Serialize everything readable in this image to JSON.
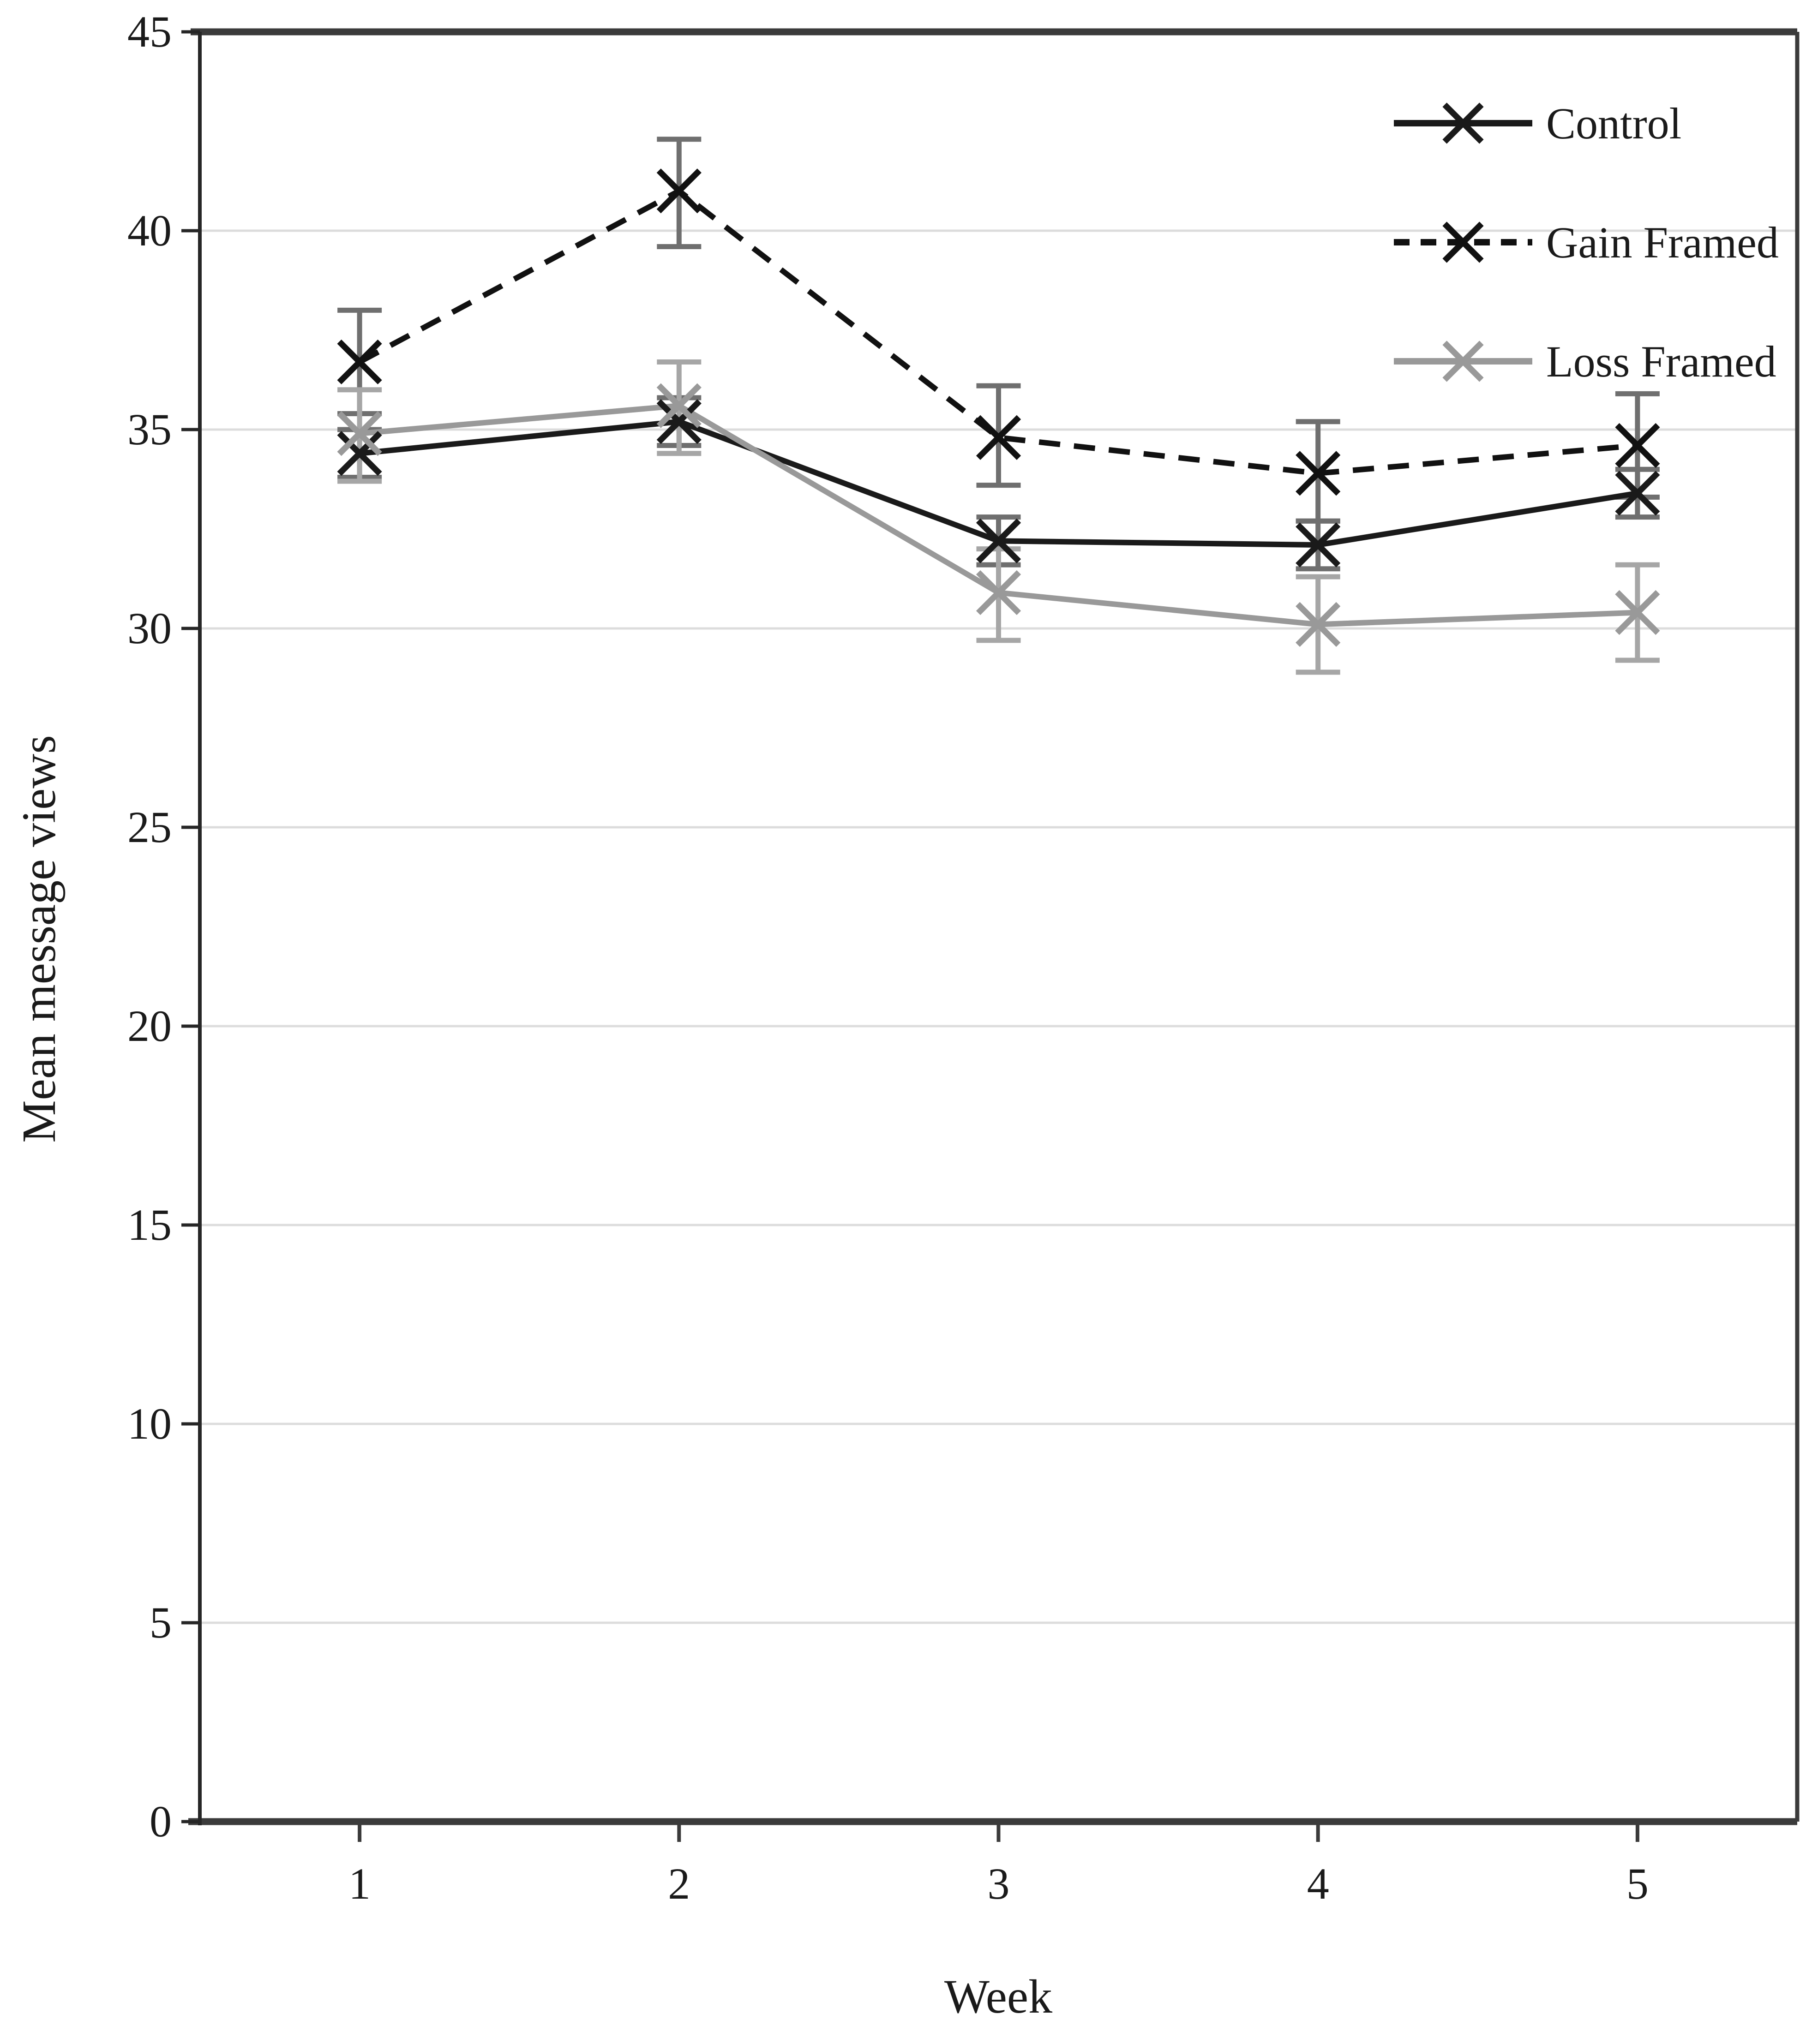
{
  "figure": {
    "background": "#ffffff",
    "text_color": "#1a1a1a",
    "x_axis_title": "Week",
    "y_axis_title": "Mean message views"
  },
  "chart_data": {
    "type": "line",
    "title": "",
    "xlabel": "Week",
    "ylabel": "Mean message views",
    "categories": [
      "1",
      "2",
      "3",
      "4",
      "5"
    ],
    "x": [
      1,
      2,
      3,
      4,
      5
    ],
    "ylim": [
      0,
      45
    ],
    "y_tick_step": 5,
    "y_tick_labels": [
      "0",
      "5",
      "10",
      "15",
      "20",
      "25",
      "30",
      "35",
      "40",
      "45"
    ],
    "grid": "horizontal-light",
    "grid_color": "#dcdcdc",
    "axis_color": "#3b3b3b",
    "legend_position": "top-right-inside",
    "error_bars": true,
    "series": [
      {
        "name": "Control",
        "line_style": "solid",
        "color": "#1a1a1a",
        "marker": "x",
        "error_color": "#6f6f6f",
        "values": [
          34.4,
          35.2,
          32.2,
          32.1,
          33.4
        ],
        "error_low": [
          33.8,
          34.6,
          31.6,
          31.5,
          32.8
        ],
        "error_high": [
          35.0,
          35.8,
          32.8,
          32.7,
          34.0
        ]
      },
      {
        "name": "Gain Framed",
        "line_style": "dashed",
        "color": "#111111",
        "marker": "x",
        "error_color": "#6f6f6f",
        "values": [
          36.7,
          41.0,
          34.8,
          33.9,
          34.6
        ],
        "error_low": [
          35.4,
          39.6,
          33.6,
          32.7,
          33.3
        ],
        "error_high": [
          38.0,
          42.3,
          36.1,
          35.2,
          35.9
        ]
      },
      {
        "name": "Loss Framed",
        "line_style": "solid",
        "color": "#999999",
        "marker": "x",
        "error_color": "#a6a6a6",
        "values": [
          34.9,
          35.6,
          30.9,
          30.1,
          30.4
        ],
        "error_low": [
          33.7,
          34.4,
          29.7,
          28.9,
          29.2
        ],
        "error_high": [
          36.0,
          36.7,
          32.0,
          31.3,
          31.6
        ]
      }
    ]
  }
}
